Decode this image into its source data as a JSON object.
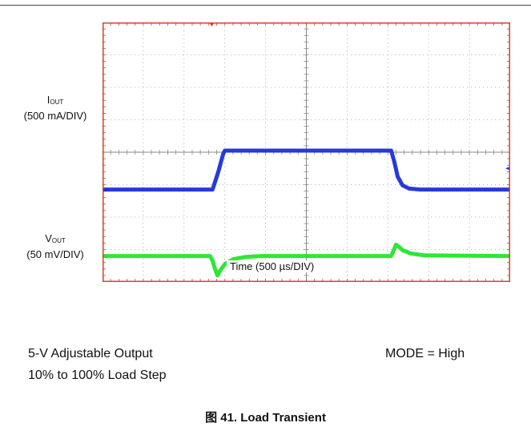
{
  "chart_data": {
    "type": "line",
    "subtype": "oscilloscope-capture",
    "grid": "on",
    "divisions": {
      "x": 10,
      "y": 8
    },
    "x_axis": {
      "label": "Time (500 µs/DIV)",
      "unit": "µs",
      "per_div": 500,
      "range": [
        0,
        5000
      ]
    },
    "series": [
      {
        "name": "IOUT",
        "symbol_main": "I",
        "symbol_sub": "OUT",
        "scale": "(500 mA/DIV)",
        "color": "#1a2fd8",
        "unit": "div",
        "points": [
          [
            0,
            2.85
          ],
          [
            1350,
            2.85
          ],
          [
            1420,
            3.4
          ],
          [
            1480,
            3.95
          ],
          [
            1500,
            4.05
          ],
          [
            3540,
            4.05
          ],
          [
            3580,
            3.7
          ],
          [
            3620,
            3.25
          ],
          [
            3680,
            2.98
          ],
          [
            3760,
            2.88
          ],
          [
            3900,
            2.85
          ],
          [
            5000,
            2.85
          ]
        ]
      },
      {
        "name": "VOUT",
        "symbol_main": "V",
        "symbol_sub": "OUT",
        "scale": "(50 mV/DIV)",
        "color": "#22e62a",
        "unit": "div",
        "points": [
          [
            0,
            0.8
          ],
          [
            1320,
            0.8
          ],
          [
            1350,
            0.65
          ],
          [
            1380,
            0.4
          ],
          [
            1410,
            0.2
          ],
          [
            1440,
            0.34
          ],
          [
            1500,
            0.55
          ],
          [
            1600,
            0.7
          ],
          [
            1750,
            0.77
          ],
          [
            1950,
            0.8
          ],
          [
            3540,
            0.8
          ],
          [
            3570,
            0.97
          ],
          [
            3600,
            1.15
          ],
          [
            3630,
            1.1
          ],
          [
            3680,
            0.98
          ],
          [
            3780,
            0.88
          ],
          [
            3950,
            0.82
          ],
          [
            5000,
            0.8
          ]
        ]
      }
    ]
  },
  "notes": {
    "line1": "5-V Adjustable Output",
    "line2": "10% to 100% Load Step",
    "mode": "MODE = High"
  },
  "caption": "图 41. Load Transient",
  "colors": {
    "frame": "#d2452a",
    "grid": "#999999",
    "center_axis": "#8a8a8a",
    "trigger": "#e8231a"
  }
}
